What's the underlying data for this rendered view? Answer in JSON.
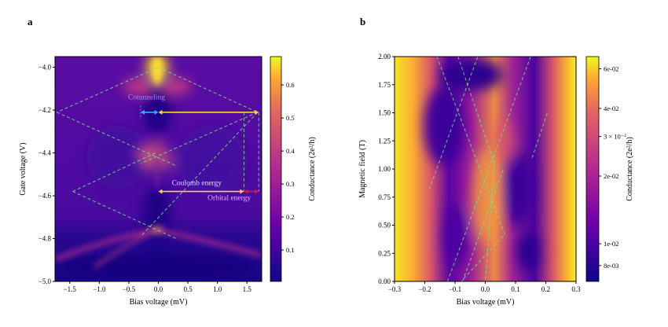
{
  "chart_data": [
    {
      "panel_label": "a",
      "type": "heatmap",
      "xlabel": "Bias voltage (mV)",
      "ylabel": "Gate voltage (V)",
      "xlim": [
        -1.75,
        1.75
      ],
      "ylim": [
        -5.0,
        -3.95
      ],
      "xticks": [
        -1.5,
        -1.0,
        -0.5,
        0.0,
        0.5,
        1.0,
        1.5
      ],
      "xtick_labels": [
        "−1.5",
        "−1.0",
        "−0.5",
        "0.0",
        "0.5",
        "1.0",
        "1.5"
      ],
      "yticks": [
        -5.0,
        -4.8,
        -4.6,
        -4.4,
        -4.2,
        -4.0
      ],
      "ytick_labels": [
        "−5.0",
        "−4.8",
        "−4.6",
        "−4.4",
        "−4.2",
        "−4.0"
      ],
      "colormap": "plasma",
      "colorbar": {
        "label": "Conductance (2e²/h)",
        "scale": "linear",
        "range": [
          0.005,
          0.686
        ],
        "ticks": [
          0.1,
          0.2,
          0.3,
          0.4,
          0.5,
          0.6
        ],
        "tick_labels": [
          "0.1",
          "0.2",
          "0.3",
          "0.4",
          "0.5",
          "0.6"
        ]
      },
      "guide_lines": [
        {
          "points": [
            [
              0.0,
              -4.0
            ],
            [
              1.68,
              -4.21
            ]
          ]
        },
        {
          "points": [
            [
              0.0,
              -4.0
            ],
            [
              -1.72,
              -4.21
            ]
          ]
        },
        {
          "points": [
            [
              -1.72,
              -4.21
            ],
            [
              0.3,
              -4.46
            ]
          ]
        },
        {
          "points": [
            [
              1.68,
              -4.21
            ],
            [
              -0.3,
              -4.45
            ]
          ]
        },
        {
          "points": [
            [
              -0.05,
              -4.4
            ],
            [
              -1.45,
              -4.58
            ]
          ]
        },
        {
          "points": [
            [
              -1.45,
              -4.58
            ],
            [
              0.3,
              -4.8
            ]
          ]
        },
        {
          "points": [
            [
              1.68,
              -4.21
            ],
            [
              -0.3,
              -4.79
            ]
          ]
        },
        {
          "points": [
            [
              1.45,
              -4.21
            ],
            [
              1.45,
              -4.58
            ]
          ]
        },
        {
          "points": [
            [
              1.7,
              -4.21
            ],
            [
              1.7,
              -4.58
            ]
          ]
        }
      ],
      "annotations": [
        {
          "text": "Cotunneling",
          "x": -0.2,
          "y": -4.15,
          "color": "#9f8cff"
        },
        {
          "text": "Coulomb energy",
          "x": 0.65,
          "y": -4.55,
          "color": "#e8d8ff"
        },
        {
          "text": "Orbital energy",
          "x": 1.2,
          "y": -4.62,
          "color": "#f0a8ff"
        }
      ],
      "arrows": [
        {
          "from": [
            -0.3,
            -4.21
          ],
          "to": [
            0.0,
            -4.21
          ],
          "color": "#3fa9f5"
        },
        {
          "from": [
            0.0,
            -4.21
          ],
          "to": [
            1.7,
            -4.21
          ],
          "color": "#ffd23c"
        },
        {
          "from": [
            0.0,
            -4.58
          ],
          "to": [
            1.45,
            -4.58
          ],
          "color": "#ffd23c"
        },
        {
          "from": [
            1.45,
            -4.58
          ],
          "to": [
            1.7,
            -4.58
          ],
          "color": "#e8102a"
        }
      ]
    },
    {
      "panel_label": "b",
      "type": "heatmap",
      "xlabel": "Bias voltage (mV)",
      "ylabel": "Magnetic field (T)",
      "xlim": [
        -0.3,
        0.3
      ],
      "ylim": [
        0.0,
        2.0
      ],
      "xticks": [
        -0.3,
        -0.2,
        -0.1,
        0.0,
        0.1,
        0.2,
        0.3
      ],
      "xtick_labels": [
        "−0.3",
        "−0.2",
        "−0.1",
        "0.0",
        "0.1",
        "0.2",
        "0.3"
      ],
      "yticks": [
        0.0,
        0.25,
        0.5,
        0.75,
        1.0,
        1.25,
        1.5,
        1.75,
        2.0
      ],
      "ytick_labels": [
        "0.00",
        "0.25",
        "0.50",
        "0.75",
        "1.00",
        "1.25",
        "1.50",
        "1.75",
        "2.00"
      ],
      "colormap": "plasma",
      "colorbar": {
        "label": "Conductance (2e²/h)",
        "scale": "log",
        "range": [
          0.0068,
          0.068
        ],
        "ticks": [
          0.008,
          0.01,
          0.02,
          0.03,
          0.04,
          0.06
        ],
        "tick_labels": [
          "8e-03",
          "1e-02",
          "2e-02",
          "3 × 10⁻²",
          "4e-02",
          "6e-02"
        ]
      },
      "guide_lines": [
        {
          "points": [
            [
              -0.185,
              0.82
            ],
            [
              -0.025,
              2.0
            ]
          ]
        },
        {
          "points": [
            [
              -0.16,
              2.0
            ],
            [
              0.065,
              0.42
            ],
            [
              -0.08,
              0.0
            ]
          ]
        },
        {
          "points": [
            [
              -0.09,
              2.0
            ],
            [
              0.03,
              1.05
            ],
            [
              0.0,
              0.0
            ]
          ]
        },
        {
          "points": [
            [
              -0.125,
              0.0
            ],
            [
              0.15,
              2.0
            ]
          ]
        },
        {
          "points": [
            [
              -0.075,
              0.0
            ],
            [
              0.06,
              1.0
            ]
          ]
        },
        {
          "points": [
            [
              0.155,
              1.1
            ],
            [
              0.205,
              1.5
            ]
          ]
        }
      ]
    }
  ]
}
